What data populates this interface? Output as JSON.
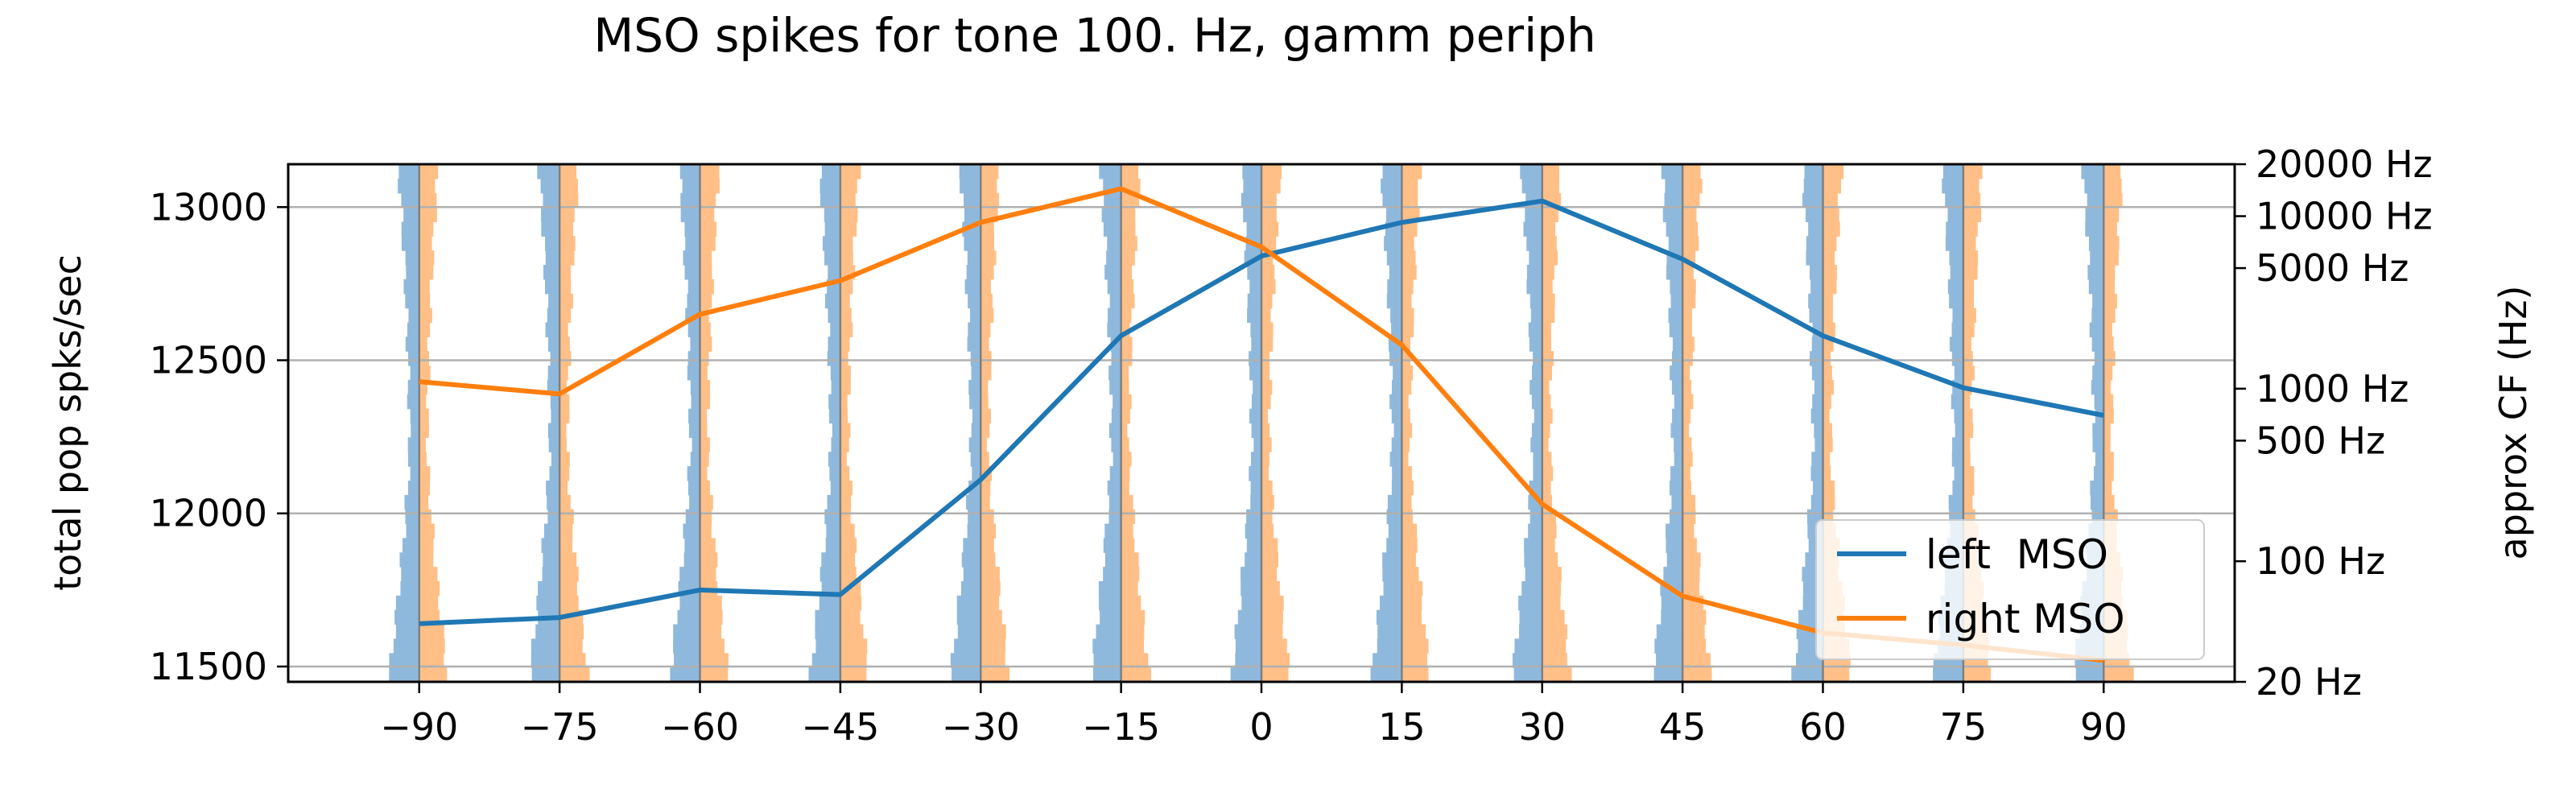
{
  "chart_data": {
    "type": "line",
    "title": "MSO spikes for tone 100. Hz, gamm periph",
    "xlabel": "",
    "ylabel": "total pop spks/sec",
    "y2label": "approx CF (Hz)",
    "x": [
      -90,
      -75,
      -60,
      -45,
      -30,
      -15,
      0,
      15,
      30,
      45,
      60,
      75,
      90
    ],
    "xlim": [
      -104,
      104
    ],
    "ylim": [
      11450,
      13140
    ],
    "xticks": [
      -90,
      -75,
      -60,
      -45,
      -30,
      -15,
      0,
      15,
      30,
      45,
      60,
      75,
      90
    ],
    "yticks": [
      11500,
      12000,
      12500,
      13000
    ],
    "y2_scale": "log",
    "y2lim": [
      20,
      20000
    ],
    "y2ticks": [
      20,
      100,
      500,
      1000,
      5000,
      10000,
      20000
    ],
    "y2ticklabels": [
      "20 Hz",
      "100 Hz",
      "500 Hz",
      "1000 Hz",
      "5000 Hz",
      "10000 Hz",
      "20000 Hz"
    ],
    "grid": "y",
    "legend_position": "lower-right",
    "series": [
      {
        "name": "left  MSO",
        "color": "#1f77b4",
        "values": [
          11640,
          11660,
          11750,
          11735,
          12110,
          12580,
          12840,
          12950,
          13020,
          12830,
          12580,
          12410,
          12320
        ]
      },
      {
        "name": "right MSO",
        "color": "#ff7f0e",
        "values": [
          12430,
          12390,
          12650,
          12760,
          12950,
          13060,
          12870,
          12550,
          12030,
          11730,
          11610,
          11570,
          11520
        ]
      }
    ],
    "histogram_colors": [
      "#8fb9dc",
      "#ffbf87"
    ],
    "marker_line_color": "#7f7f7f"
  }
}
